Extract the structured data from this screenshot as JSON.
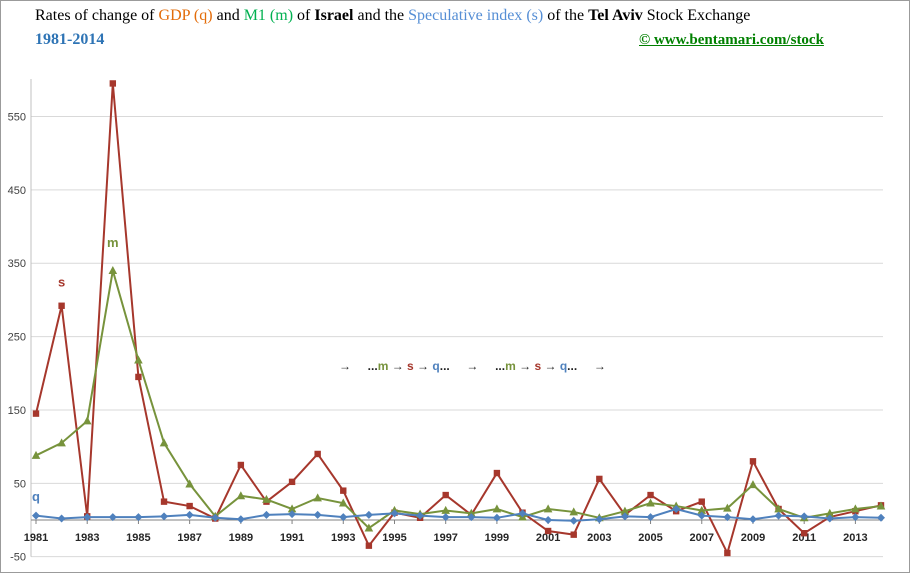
{
  "header": {
    "title_segments": [
      {
        "text": "Rates of change of ",
        "color": "#000000"
      },
      {
        "text": "GDP (q)",
        "color": "#E36C09"
      },
      {
        "text": "  and ",
        "color": "#000000"
      },
      {
        "text": "M1 (m)",
        "color": "#00B050"
      },
      {
        "text": " of ",
        "color": "#000000"
      },
      {
        "text": "Israel",
        "color": "#000000",
        "bold": true
      },
      {
        "text": " and the ",
        "color": "#000000"
      },
      {
        "text": "Speculative index (s)",
        "color": "#558ED5"
      },
      {
        "text": " of the ",
        "color": "#000000"
      },
      {
        "text": "Tel Aviv",
        "color": "#000000",
        "bold": true
      },
      {
        "text": " Stock Exchange",
        "color": "#000000"
      }
    ],
    "subtitle": "1981-2014",
    "link": "© www.bentamari.com/stock"
  },
  "chart_data": {
    "type": "line",
    "title": "Rates of change of GDP (q) and M1 (m) of Israel and the Speculative index (s) of the Tel Aviv Stock Exchange 1981-2014",
    "x": [
      1981,
      1982,
      1983,
      1984,
      1985,
      1986,
      1987,
      1988,
      1989,
      1990,
      1991,
      1992,
      1993,
      1994,
      1995,
      1996,
      1997,
      1998,
      1999,
      2000,
      2001,
      2002,
      2003,
      2004,
      2005,
      2006,
      2007,
      2008,
      2009,
      2010,
      2011,
      2012,
      2013,
      2014
    ],
    "xticks": [
      1981,
      1983,
      1985,
      1987,
      1989,
      1991,
      1993,
      1995,
      1997,
      1999,
      2001,
      2003,
      2005,
      2007,
      2009,
      2011,
      2013
    ],
    "yticks": [
      -50,
      50,
      150,
      250,
      350,
      450,
      550
    ],
    "ylim": [
      -50,
      620
    ],
    "grid": true,
    "legend": "none",
    "series": [
      {
        "name": "s",
        "label": "Speculative index",
        "color": "#A6372C",
        "marker": "square",
        "pointer_label": {
          "text": "s",
          "year": 1982,
          "value": 318
        },
        "values": [
          145,
          292,
          5,
          595,
          195,
          25,
          19,
          2,
          75,
          25,
          52,
          90,
          40,
          -35,
          10,
          3,
          34,
          7,
          64,
          10,
          -15,
          -20,
          56,
          7,
          34,
          12,
          25,
          -45,
          80,
          15,
          -18,
          4,
          12,
          20
        ]
      },
      {
        "name": "m",
        "label": "M1",
        "color": "#77933C",
        "marker": "triangle",
        "pointer_label": {
          "text": "m",
          "year": 1984,
          "value": 372
        },
        "values": [
          88,
          105,
          135,
          340,
          218,
          105,
          49,
          5,
          33,
          28,
          15,
          30,
          23,
          -11,
          13,
          8,
          13,
          9,
          15,
          4,
          15,
          11,
          3,
          12,
          23,
          19,
          13,
          16,
          48,
          15,
          3,
          9,
          15,
          19
        ]
      },
      {
        "name": "q",
        "label": "GDP",
        "color": "#4F81BD",
        "marker": "diamond",
        "pointer_label": {
          "text": "q",
          "year": 1981,
          "value": 26
        },
        "values": [
          6,
          2,
          4,
          4,
          4,
          5,
          7,
          3,
          1,
          7,
          8,
          7,
          4,
          7,
          9,
          6,
          4,
          4,
          3,
          9,
          0,
          -1,
          1,
          5,
          4,
          15,
          6,
          4,
          1,
          6,
          5,
          2,
          4,
          3
        ]
      }
    ],
    "annotation_segments": [
      {
        "text": "→",
        "color": "#1f1f1f"
      },
      {
        "text": "     ",
        "color": "#1f1f1f"
      },
      {
        "text": "...",
        "color": "#1f1f1f"
      },
      {
        "text": "m",
        "color": "#77933C"
      },
      {
        "text": " → ",
        "color": "#1f1f1f"
      },
      {
        "text": "s",
        "color": "#A6372C"
      },
      {
        "text": " → ",
        "color": "#1f1f1f"
      },
      {
        "text": "q",
        "color": "#4F81BD"
      },
      {
        "text": "...",
        "color": "#1f1f1f"
      },
      {
        "text": "     ",
        "color": "#1f1f1f"
      },
      {
        "text": "→",
        "color": "#1f1f1f"
      },
      {
        "text": "     ",
        "color": "#1f1f1f"
      },
      {
        "text": "...",
        "color": "#1f1f1f"
      },
      {
        "text": "m",
        "color": "#77933C"
      },
      {
        "text": " → ",
        "color": "#1f1f1f"
      },
      {
        "text": "s",
        "color": "#A6372C"
      },
      {
        "text": " → ",
        "color": "#1f1f1f"
      },
      {
        "text": "q",
        "color": "#4F81BD"
      },
      {
        "text": "...",
        "color": "#1f1f1f"
      },
      {
        "text": "     ",
        "color": "#1f1f1f"
      },
      {
        "text": "→",
        "color": "#1f1f1f"
      }
    ],
    "axis_colors": {
      "grid": "#D9D9D9",
      "axis": "#808080",
      "tick_label": "#262626",
      "y_label": "#404040"
    }
  }
}
